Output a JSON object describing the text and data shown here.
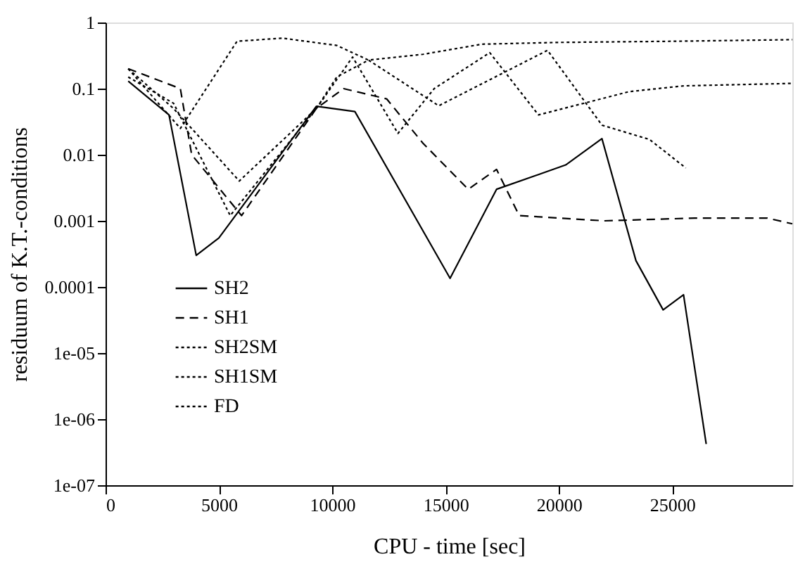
{
  "chart_data": {
    "type": "line",
    "xlabel": "CPU - time [sec]",
    "ylabel": "residuum of K.T.-conditions",
    "log": "y",
    "grid": false,
    "legend": "bottom left",
    "marker": "none",
    "xlim": [
      0,
      30300
    ],
    "xticks": [
      0,
      5000,
      10000,
      15000,
      20000,
      25000
    ],
    "ylim": [
      1e-07,
      1
    ],
    "yticks": [
      {
        "value": 1e-07,
        "label": "1e-07"
      },
      {
        "value": 1e-06,
        "label": "1e-06"
      },
      {
        "value": 1e-05,
        "label": "1e-05"
      },
      0.0001,
      0.001,
      0.01,
      0.1,
      1
    ],
    "series": [
      {
        "name": "SH2",
        "color": "#000000",
        "line_style": "solid",
        "x": [
          1000,
          2800,
          4000,
          5000,
          9300,
          11000,
          15200,
          17250,
          20300,
          21900,
          23400,
          24600,
          25500,
          26500
        ],
        "values": [
          0.13,
          0.04,
          0.0003,
          0.00055,
          0.054,
          0.045,
          0.000135,
          0.003,
          0.007,
          0.0175,
          0.00025,
          4.5e-05,
          7.6e-05,
          4.2e-07
        ]
      },
      {
        "name": "SH1",
        "color": "#000000",
        "line_style": "dashed",
        "x": [
          1000,
          3300,
          3800,
          6000,
          9300,
          10500,
          12400,
          14000,
          16000,
          17250,
          18250,
          22000,
          26000,
          29200,
          30300
        ],
        "values": [
          0.2,
          0.1,
          0.01,
          0.0012,
          0.05,
          0.1,
          0.07,
          0.015,
          0.003,
          0.006,
          0.0012,
          0.001,
          0.0011,
          0.0011,
          0.0009
        ]
      },
      {
        "name": "SH2SM",
        "color": "#000000",
        "line_style": "dotted",
        "x": [
          1000,
          3000,
          5500,
          9300,
          10900,
          12900,
          14500,
          16950,
          19100,
          23100,
          25500,
          30300
        ],
        "values": [
          0.15,
          0.06,
          0.0012,
          0.05,
          0.3,
          0.021,
          0.1,
          0.35,
          0.04,
          0.09,
          0.11,
          0.12
        ]
      },
      {
        "name": "SH1SM",
        "color": "#000000",
        "line_style": "dotted",
        "x": [
          1000,
          3000,
          5900,
          9300,
          10200,
          11600,
          14700,
          19500,
          21900,
          24000,
          25600
        ],
        "values": [
          0.2,
          0.05,
          0.004,
          0.05,
          0.15,
          0.27,
          0.055,
          0.38,
          0.028,
          0.017,
          0.0063
        ]
      },
      {
        "name": "FD",
        "color": "#000000",
        "line_style": "dotted",
        "x": [
          1000,
          3300,
          5800,
          7800,
          10200,
          11600,
          14000,
          16600,
          20000,
          25000,
          30300
        ],
        "values": [
          0.2,
          0.025,
          0.52,
          0.58,
          0.45,
          0.27,
          0.33,
          0.47,
          0.5,
          0.52,
          0.55
        ]
      }
    ]
  }
}
